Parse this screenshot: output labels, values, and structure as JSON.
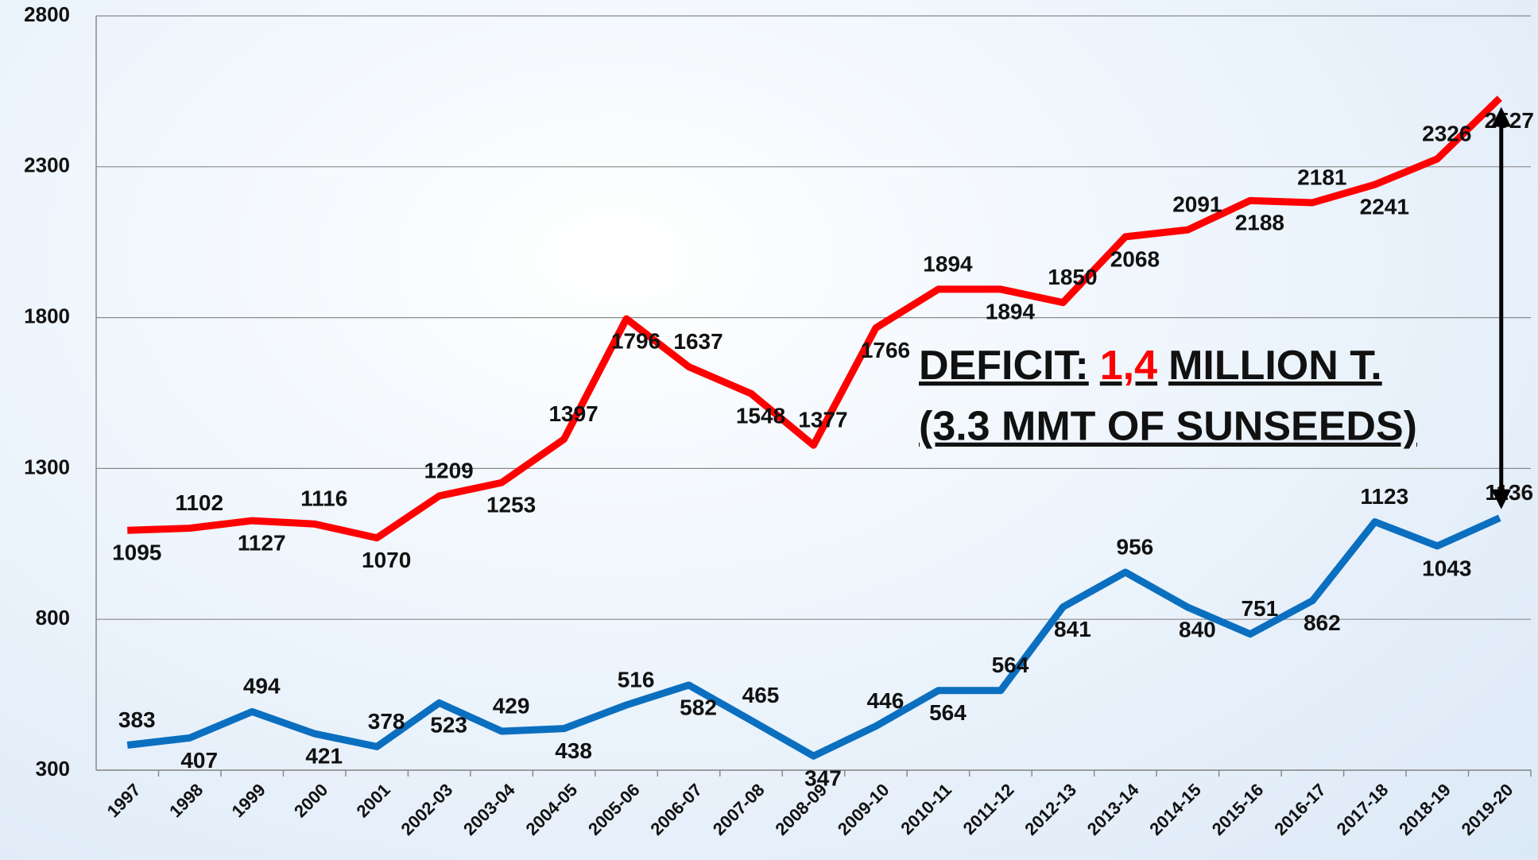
{
  "chart_data": {
    "type": "line",
    "categories": [
      "1997",
      "1998",
      "1999",
      "2000",
      "2001",
      "2002-03",
      "2003-04",
      "2004-05",
      "2005-06",
      "2006-07",
      "2007-08",
      "2008-09",
      "2009-10",
      "2010-11",
      "2011-12",
      "2012-13",
      "2013-14",
      "2014-15",
      "2015-16",
      "2016-17",
      "2017-18",
      "2018-19",
      "2019-20"
    ],
    "series": [
      {
        "color": "#ff0000",
        "values": [
          1095,
          1102,
          1127,
          1116,
          1070,
          1209,
          1253,
          1397,
          1796,
          1637,
          1548,
          1377,
          1766,
          1894,
          1894,
          1850,
          2068,
          2091,
          2188,
          2181,
          2241,
          2326,
          2527
        ]
      },
      {
        "color": "#0b6fc0",
        "values": [
          383,
          407,
          494,
          421,
          378,
          523,
          429,
          438,
          516,
          582,
          465,
          347,
          446,
          564,
          564,
          841,
          956,
          840,
          751,
          862,
          1123,
          1043,
          1136
        ]
      }
    ],
    "ylim": [
      300,
      2800
    ],
    "yticks": [
      300,
      800,
      1300,
      1800,
      2300,
      2800
    ],
    "grid": true,
    "annotation": {
      "prefix": "DEFICIT:",
      "highlight": "1,4",
      "suffix": "MILLION T.",
      "line2": "(3.3 MMT OF SUNSEEDS)",
      "highlight_color": "#ff0000"
    }
  }
}
